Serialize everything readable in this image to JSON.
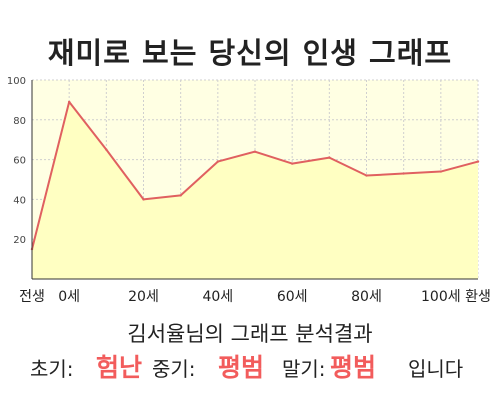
{
  "header": {
    "title": "재미로 보는 당신의 인생 그래프"
  },
  "chart_data": {
    "type": "area",
    "x": [
      "전생",
      "0세",
      "10세",
      "20세",
      "30세",
      "40세",
      "50세",
      "60세",
      "70세",
      "80세",
      "90세",
      "100세",
      "환생"
    ],
    "values": [
      15,
      89,
      65,
      40,
      42,
      59,
      64,
      58,
      61,
      52,
      53,
      54,
      59
    ],
    "x_tick_labels": [
      "전생",
      "0세",
      "20세",
      "40세",
      "60세",
      "80세",
      "100세",
      "환생"
    ],
    "y_ticks": [
      20,
      40,
      60,
      80,
      100
    ],
    "ylim": [
      0,
      100
    ],
    "grid": true,
    "colors": {
      "line": "#e06060",
      "fill": "#ffffc2",
      "plot_bg": "#ffffe3",
      "grid": "#cfcfcf"
    }
  },
  "summary": {
    "text": "김서율님의 그래프 분석결과"
  },
  "result": {
    "early_label": "초기:",
    "early_value": "험난",
    "middle_label": "중기:",
    "middle_value": "평범",
    "late_label": "말기:",
    "late_value": "평범",
    "suffix": "입니다"
  }
}
